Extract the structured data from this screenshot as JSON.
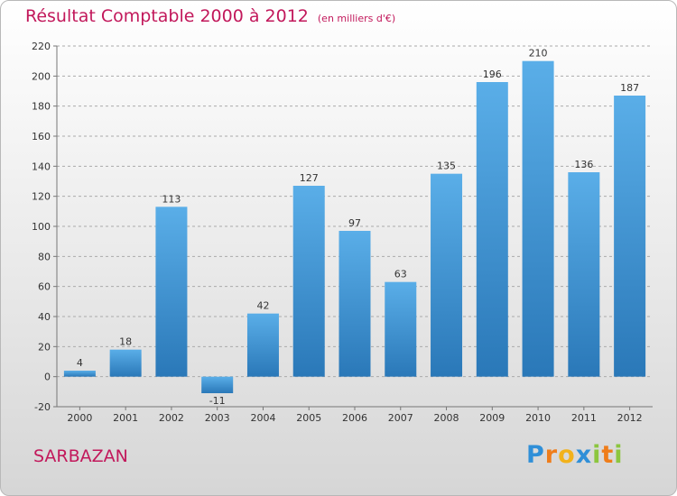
{
  "header": {
    "title": "Résultat Comptable 2000 à 2012",
    "subtitle": "(en milliers d'€)"
  },
  "footer": {
    "commune": "SARBAZAN",
    "logo": "Proxiti"
  },
  "colors": {
    "title": "#c2185b",
    "bar_light": "#5aaee8",
    "bar_dark": "#2a78b8",
    "grid": "#aaaaaa"
  },
  "chart_data": {
    "type": "bar",
    "title": "Résultat Comptable 2000 à 2012",
    "subtitle": "(en milliers d'€)",
    "categories": [
      "2000",
      "2001",
      "2002",
      "2003",
      "2004",
      "2005",
      "2006",
      "2007",
      "2008",
      "2009",
      "2010",
      "2011",
      "2012"
    ],
    "values": [
      4,
      18,
      113,
      -11,
      42,
      127,
      97,
      63,
      135,
      196,
      210,
      136,
      187
    ],
    "value_labels": [
      "4",
      "18",
      "113",
      "-11",
      "42",
      "127",
      "97",
      "63",
      "135",
      "196",
      "210",
      "136",
      "187"
    ],
    "ylim": [
      -20,
      220
    ],
    "yticks": [
      -20,
      0,
      20,
      40,
      60,
      80,
      100,
      120,
      140,
      160,
      180,
      200,
      220
    ],
    "ytick_labels": [
      "-20",
      "0",
      "20",
      "40",
      "60",
      "80",
      "100",
      "120",
      "140",
      "160",
      "180",
      "200",
      "220"
    ],
    "grid": "horizontal dashed",
    "legend": "none"
  }
}
